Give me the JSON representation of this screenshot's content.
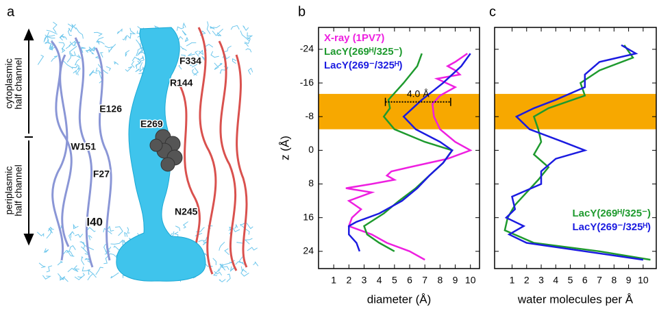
{
  "panel_a": {
    "label": "a",
    "regions": [
      [
        "cytoplasmic",
        "half channel"
      ],
      [
        "periplasmic",
        "half channel"
      ]
    ],
    "residues": [
      "F334",
      "R144",
      "E126",
      "E269",
      "W151",
      "F27",
      "N245",
      "I40"
    ]
  },
  "chart_data": [
    {
      "type": "line",
      "panel_label": "b",
      "x_label": "diameter (Å)",
      "y_label": "z (Å)",
      "xlim": [
        0,
        10.6
      ],
      "xticks": [
        1,
        2,
        3,
        4,
        5,
        6,
        7,
        8,
        9,
        10
      ],
      "ylim": [
        28.1,
        -29.2
      ],
      "yticks": [
        -24,
        -16,
        -8,
        0,
        8,
        16,
        24
      ],
      "legend": "upper left",
      "bands": [
        {
          "range": [
            -13.4,
            -5
          ],
          "color": "#f7a800"
        }
      ],
      "annotations": [
        {
          "text": "4.0 Å",
          "x": [
            4.4,
            8.7
          ],
          "z": -11.5
        }
      ],
      "series": [
        {
          "name": "X-ray (1PV7)",
          "color": "#ee1fe0",
          "z": [
            -23,
            -21,
            -20,
            -19,
            -18,
            -17,
            -15,
            -13,
            -11,
            -8,
            -5,
            -2,
            0,
            2,
            4,
            5,
            6,
            7,
            8,
            9,
            10,
            12,
            14,
            16,
            18,
            20,
            22,
            24,
            26
          ],
          "values": [
            9.8,
            9.0,
            8.5,
            9.0,
            9.3,
            7.8,
            9.0,
            8.0,
            7.5,
            7.6,
            8.0,
            9.0,
            10.0,
            8.5,
            6.0,
            4.8,
            4.5,
            5.0,
            3.5,
            1.8,
            3.5,
            2.0,
            2.8,
            2.2,
            2.0,
            3.5,
            4.5,
            6.0,
            7.0
          ]
        },
        {
          "name": "LacY(269ᴴ/325⁻)",
          "color": "#1e9a2e",
          "z": [
            -23,
            -20,
            -16,
            -12,
            -10,
            -8,
            -5,
            -2,
            0,
            3,
            6,
            9,
            12,
            15,
            18,
            20,
            22,
            24
          ],
          "values": [
            6.8,
            6.5,
            5.6,
            4.6,
            4.7,
            4.3,
            5.0,
            7.0,
            8.8,
            8.2,
            7.3,
            6.4,
            5.3,
            4.3,
            3.0,
            3.2,
            4.0,
            5.0
          ]
        },
        {
          "name": "LacY(269⁻/325ᴴ)",
          "color": "#1b1be0",
          "z": [
            -23,
            -20,
            -16,
            -12,
            -8,
            -5,
            -2,
            0,
            3,
            6,
            9,
            12,
            15,
            17,
            18,
            20,
            22,
            24
          ],
          "values": [
            10.0,
            9.4,
            8.2,
            6.8,
            5.6,
            6.4,
            8.0,
            8.8,
            8.2,
            7.3,
            6.5,
            5.5,
            4.0,
            2.5,
            2.0,
            2.0,
            2.5,
            2.7
          ]
        }
      ]
    },
    {
      "type": "line",
      "panel_label": "c",
      "x_label": "water molecules per Å",
      "xlim": [
        -0.2,
        10.9
      ],
      "xticks": [
        1,
        2,
        3,
        4,
        5,
        6,
        7,
        8,
        9,
        10
      ],
      "ylim": [
        28.1,
        -29.2
      ],
      "yticks": [
        -24,
        -16,
        -8,
        0,
        8,
        16,
        24
      ],
      "ytick_labels": false,
      "legend": "lower right",
      "bands": [
        {
          "range": [
            -13.4,
            -5
          ],
          "color": "#f7a800"
        }
      ],
      "series": [
        {
          "name": "LacY(269ᴴ/325⁻)",
          "color": "#1e9a2e",
          "z": [
            -25,
            -22,
            -19,
            -16,
            -13,
            -10,
            -8,
            -5,
            -2,
            1,
            4,
            7,
            10,
            13,
            16,
            19,
            22,
            24,
            26
          ],
          "values": [
            8.7,
            9.3,
            7.0,
            5.7,
            6.0,
            3.5,
            2.5,
            2.8,
            3.0,
            2.5,
            3.5,
            2.8,
            2.0,
            1.2,
            0.7,
            0.5,
            2.5,
            7.0,
            10.5
          ]
        },
        {
          "name": "LacY(269⁻/325ᴴ)",
          "color": "#1b1be0",
          "z": [
            -25,
            -23,
            -21,
            -18,
            -15,
            -12,
            -10,
            -8,
            -5,
            -2,
            0,
            2,
            5,
            8,
            11,
            14,
            16,
            18,
            20,
            22,
            24,
            26
          ],
          "values": [
            8.5,
            9.5,
            7.0,
            6.0,
            6.0,
            4.0,
            2.5,
            1.3,
            2.2,
            4.5,
            6.0,
            4.0,
            3.0,
            3.0,
            1.0,
            1.2,
            0.6,
            1.8,
            0.8,
            2.0,
            6.0,
            10.0
          ]
        }
      ]
    }
  ]
}
